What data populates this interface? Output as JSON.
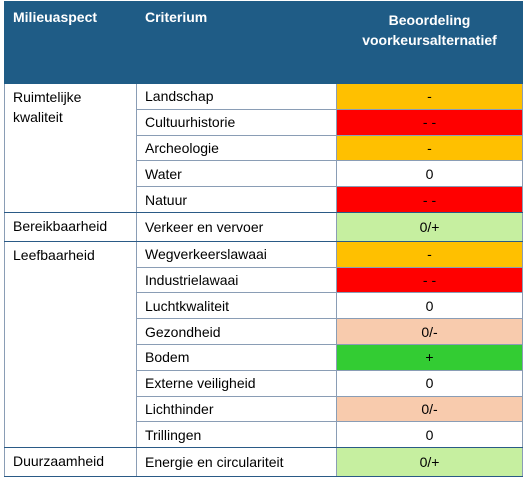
{
  "header": {
    "col_aspect": "Milieuaspect",
    "col_criterion": "Criterium",
    "col_assessment_line1": "Beoordeling",
    "col_assessment_line2": "voorkeursalternatief"
  },
  "colors": {
    "header_bg": "#1F5C86",
    "score_minus": "#FFC000",
    "score_minusminus": "#FF0000",
    "score_zero": "#FFFFFF",
    "score_zero_plus": "#C6EFA0",
    "score_zero_minus": "#F8CBAD",
    "score_plus": "#33CC33"
  },
  "groups": [
    {
      "aspect": "Ruimtelijke kwaliteit",
      "rows": [
        {
          "criterion": "Landschap",
          "score": "-",
          "color": "#FFC000"
        },
        {
          "criterion": "Cultuurhistorie",
          "score": "- -",
          "color": "#FF0000"
        },
        {
          "criterion": "Archeologie",
          "score": "-",
          "color": "#FFC000"
        },
        {
          "criterion": "Water",
          "score": "0",
          "color": "#FFFFFF"
        },
        {
          "criterion": "Natuur",
          "score": "- -",
          "color": "#FF0000"
        }
      ]
    },
    {
      "aspect": "Bereikbaarheid",
      "rows": [
        {
          "criterion": "Verkeer en vervoer",
          "score": "0/+",
          "color": "#C6EFA0"
        }
      ]
    },
    {
      "aspect": "Leefbaarheid",
      "rows": [
        {
          "criterion": "Wegverkeerslawaai",
          "score": "-",
          "color": "#FFC000"
        },
        {
          "criterion": "Industrielawaai",
          "score": "- -",
          "color": "#FF0000"
        },
        {
          "criterion": "Luchtkwaliteit",
          "score": "0",
          "color": "#FFFFFF"
        },
        {
          "criterion": "Gezondheid",
          "score": "0/-",
          "color": "#F8CBAD"
        },
        {
          "criterion": "Bodem",
          "score": "+",
          "color": "#33CC33"
        },
        {
          "criterion": "Externe veiligheid",
          "score": "0",
          "color": "#FFFFFF"
        },
        {
          "criterion": "Lichthinder",
          "score": "0/-",
          "color": "#F8CBAD"
        },
        {
          "criterion": "Trillingen",
          "score": "0",
          "color": "#FFFFFF"
        }
      ]
    },
    {
      "aspect": "Duurzaamheid",
      "rows": [
        {
          "criterion": "Energie en circulariteit",
          "score": "0/+",
          "color": "#C6EFA0"
        }
      ]
    }
  ]
}
